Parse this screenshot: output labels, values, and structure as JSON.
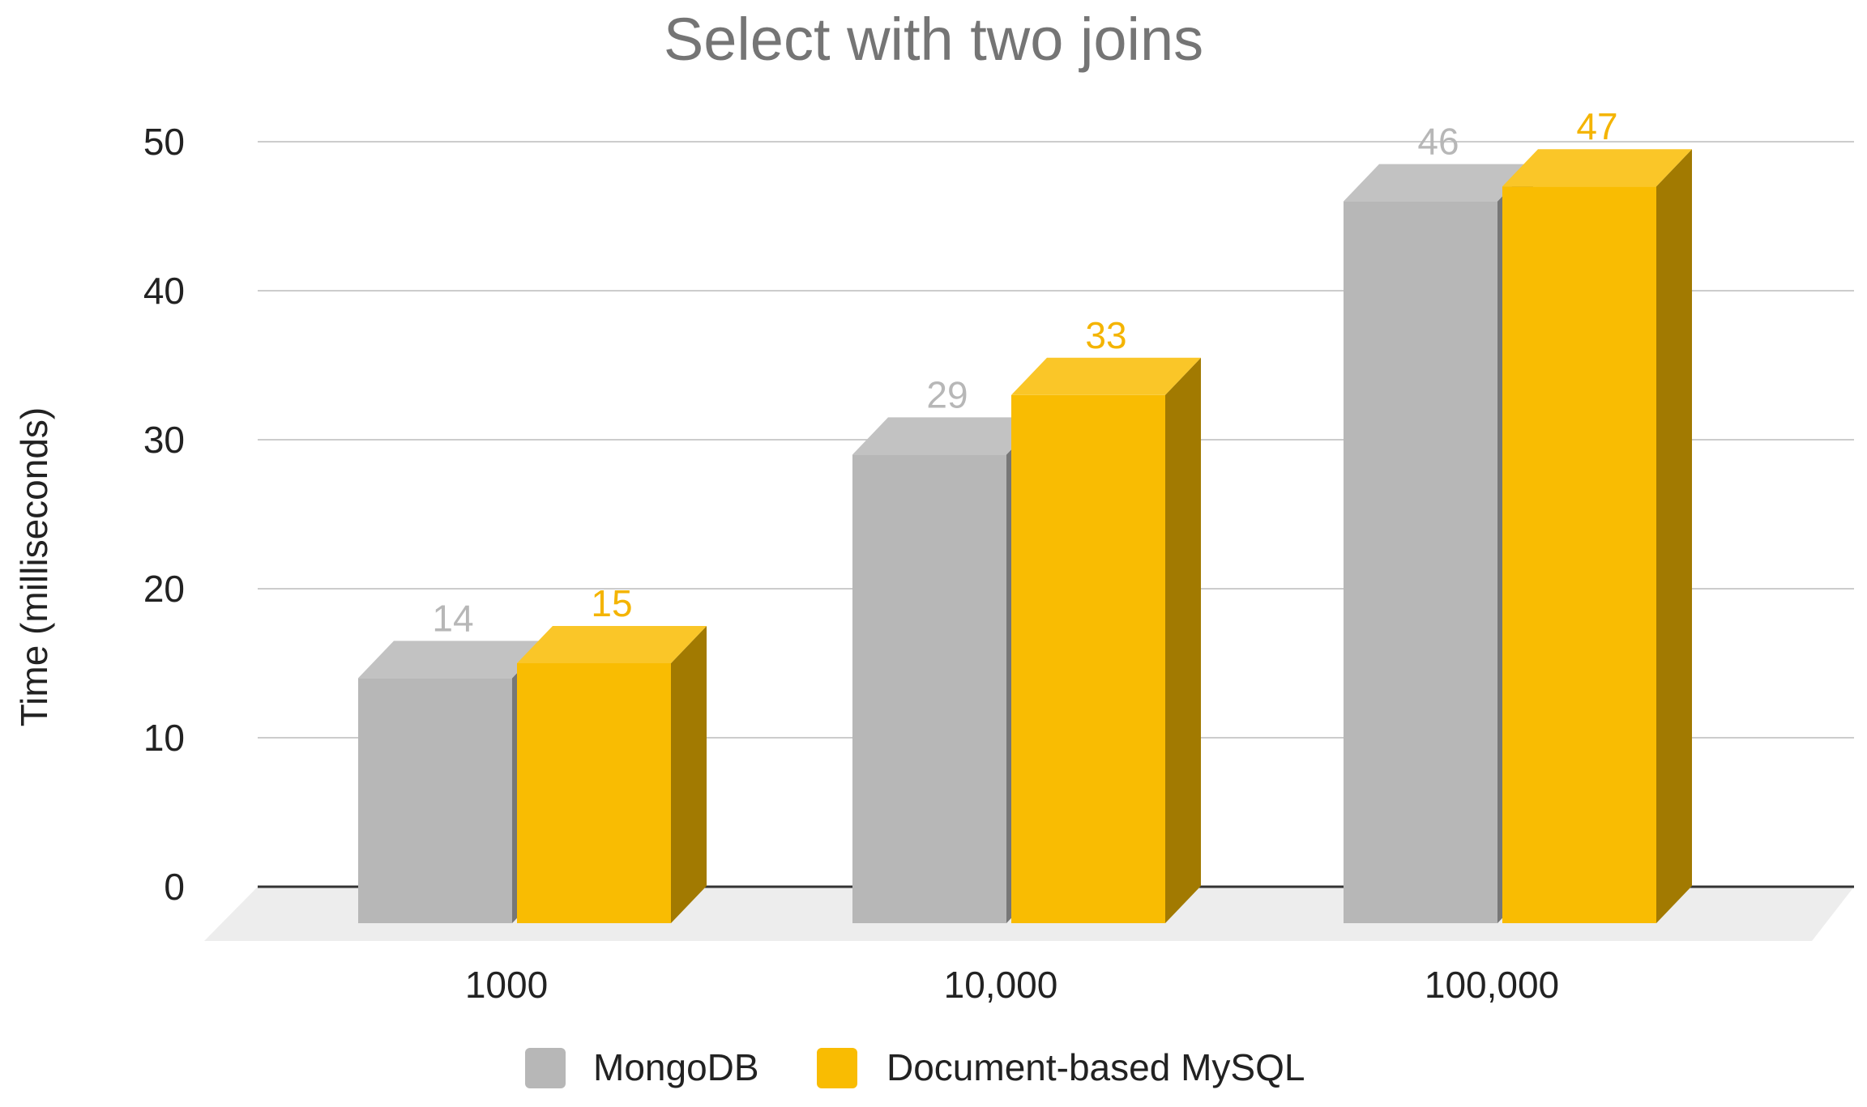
{
  "chart_data": {
    "type": "bar",
    "title": "Select with two joins",
    "xlabel": "",
    "ylabel": "Time (milliseconds)",
    "categories": [
      "1000",
      "10,000",
      "100,000"
    ],
    "series": [
      {
        "name": "MongoDB",
        "values": [
          14,
          29,
          46
        ],
        "color": "#b7b7b7",
        "label_color": "#b7b7b7"
      },
      {
        "name": "Document-based MySQL",
        "values": [
          15,
          33,
          47
        ],
        "color": "#f9bc02",
        "label_color": "#f4b400"
      }
    ],
    "ylim": [
      0,
      50
    ],
    "yticks": [
      "0",
      "10",
      "20",
      "30",
      "40",
      "50"
    ],
    "grid": true,
    "legend": "bottom",
    "style": "3d-bars"
  }
}
